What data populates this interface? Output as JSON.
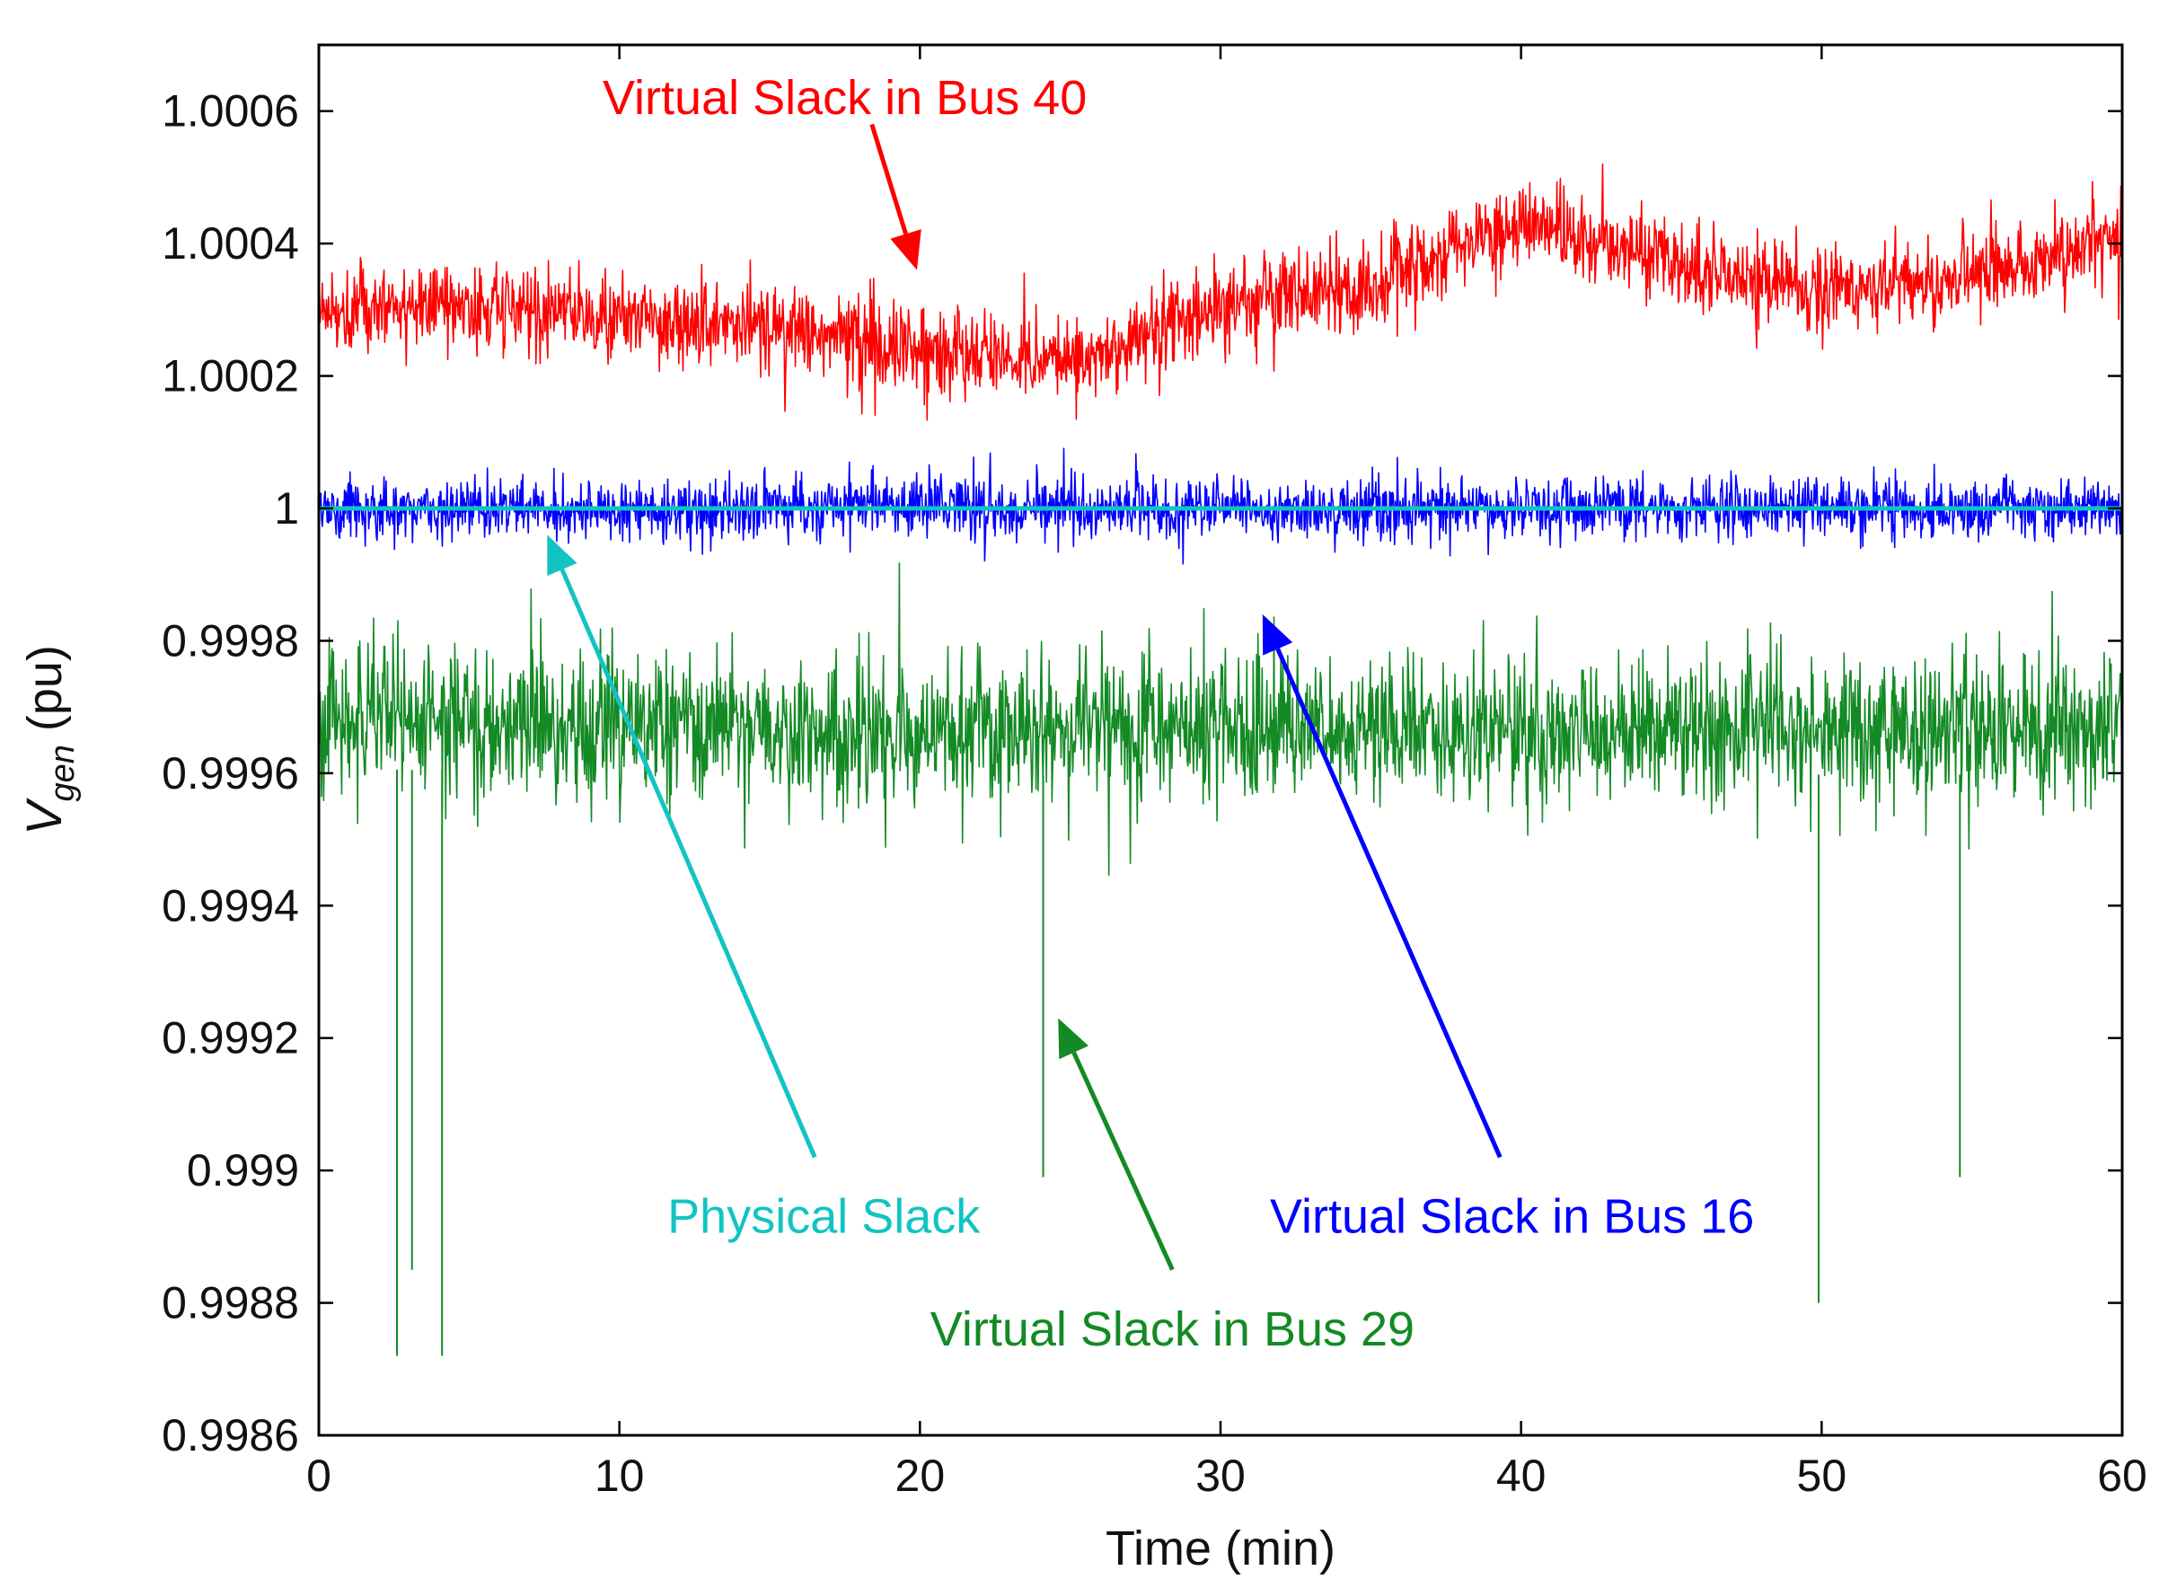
{
  "chart_data": {
    "type": "line",
    "title": "",
    "xlabel": "Time (min)",
    "ylabel_main": "V",
    "ylabel_sub": "gen",
    "ylabel_unit": " (pu)",
    "xlim": [
      0,
      60
    ],
    "ylim": [
      0.9986,
      1.0007
    ],
    "xticks": [
      0,
      10,
      20,
      30,
      40,
      50,
      60
    ],
    "xtick_labels": [
      "0",
      "10",
      "20",
      "30",
      "40",
      "50",
      "60"
    ],
    "yticks": [
      0.9986,
      0.9988,
      0.999,
      0.9992,
      0.9994,
      0.9996,
      0.9998,
      1.0,
      1.0002,
      1.0004,
      1.0006
    ],
    "ytick_labels": [
      "0.9986",
      "0.9988",
      "0.999",
      "0.9992",
      "0.9994",
      "0.9996",
      "0.9998",
      "1",
      "1.0002",
      "1.0004",
      "1.0006"
    ],
    "grid": false,
    "series": [
      {
        "name": "Virtual Slack in Bus 29",
        "color": "#138a24",
        "mean_profile_x": [
          0,
          10,
          20,
          30,
          40,
          50,
          60
        ],
        "mean_profile_y": [
          0.99968,
          0.99967,
          0.99966,
          0.99968,
          0.99966,
          0.99967,
          0.99967
        ],
        "noise_amplitude": 0.00012,
        "notable_dips": [
          [
            2.6,
            0.99872
          ],
          [
            4.1,
            0.99872
          ],
          [
            3.1,
            0.99885
          ],
          [
            24.1,
            0.99899
          ],
          [
            49.9,
            0.9988
          ],
          [
            54.6,
            0.99899
          ]
        ]
      },
      {
        "name": "Virtual Slack in Bus 16",
        "color": "#0000ff",
        "mean_profile_x": [
          0,
          60
        ],
        "mean_profile_y": [
          1.0,
          1.0
        ],
        "noise_amplitude": 5e-05
      },
      {
        "name": "Virtual Slack in Bus 40",
        "color": "#ff0000",
        "mean_profile_x": [
          0,
          5,
          10,
          15,
          20,
          25,
          30,
          35,
          40,
          45,
          50,
          55,
          60
        ],
        "mean_profile_y": [
          1.0003,
          1.00031,
          1.00029,
          1.00027,
          1.00024,
          1.00022,
          1.00031,
          1.00034,
          1.00043,
          1.00037,
          1.00033,
          1.00035,
          1.00041
        ],
        "noise_amplitude": 7e-05
      },
      {
        "name": "Physical Slack",
        "color": "#12c3c3",
        "mean_profile_x": [
          0,
          60
        ],
        "mean_profile_y": [
          1.0,
          1.0
        ],
        "noise_amplitude": 0
      }
    ],
    "annotations": [
      {
        "id": "ann-bus40",
        "text": "Virtual Slack in Bus 40",
        "color": "#ff0000",
        "text_x": 17.5,
        "text_y": 1.00062,
        "arrow_from": [
          18.4,
          1.00058
        ],
        "arrow_to": [
          19.9,
          1.00036
        ]
      },
      {
        "id": "ann-physical",
        "text": "Physical Slack",
        "color": "#12c3c3",
        "text_x": 16.8,
        "text_y": 0.99893,
        "arrow_from": [
          16.5,
          0.99902
        ],
        "arrow_to": [
          7.6,
          0.99996
        ]
      },
      {
        "id": "ann-bus16",
        "text": "Virtual Slack in Bus 16",
        "color": "#0000ff",
        "text_x": 39.7,
        "text_y": 0.99893,
        "arrow_from": [
          39.3,
          0.99902
        ],
        "arrow_to": [
          31.4,
          0.99984
        ]
      },
      {
        "id": "ann-bus29",
        "text": "Virtual Slack in Bus 29",
        "color": "#138a24",
        "text_x": 28.4,
        "text_y": 0.99876,
        "arrow_from": [
          28.4,
          0.99885
        ],
        "arrow_to": [
          24.6,
          0.99923
        ]
      }
    ]
  }
}
